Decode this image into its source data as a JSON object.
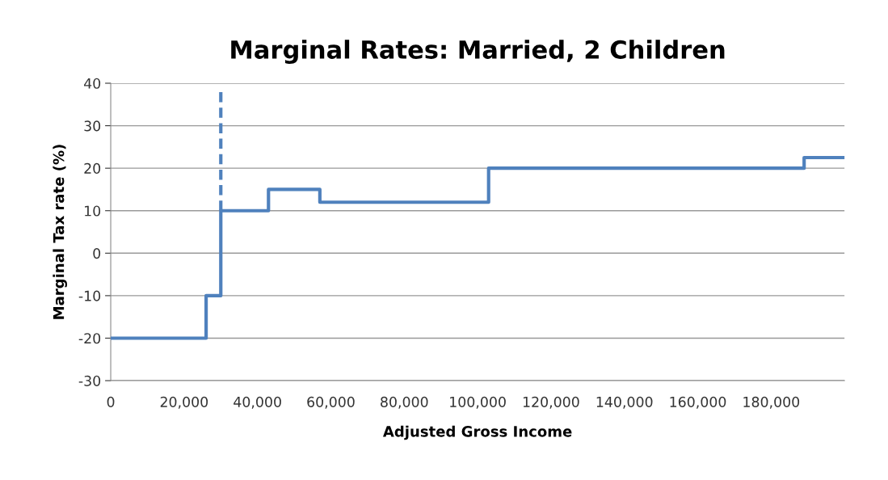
{
  "chart_data": {
    "type": "step",
    "title": "Marginal Rates: Married, 2 Children",
    "xlabel": "Adjusted Gross Income",
    "ylabel": "Marginal Tax rate (%)",
    "series": [
      {
        "color": "#4f81bd",
        "x": [
          0,
          26000,
          30000,
          43000,
          57000,
          103000,
          189000,
          200000
        ],
        "values": [
          -20,
          -10,
          10,
          15,
          12,
          20,
          22.5,
          22.5
        ]
      },
      {
        "type": "line",
        "line_style": "dashed",
        "color": "#4f81bd",
        "x": [
          30000,
          30000
        ],
        "values": [
          10,
          38
        ]
      }
    ],
    "xlim": [
      0,
      200000
    ],
    "xticks": [
      0,
      {
        "value": 20000,
        "label": "20,000"
      },
      {
        "value": 40000,
        "label": "40,000"
      },
      {
        "value": 60000,
        "label": "60,000"
      },
      {
        "value": 80000,
        "label": "80,000"
      },
      {
        "value": 100000,
        "label": "100,000"
      },
      {
        "value": 120000,
        "label": "120,000"
      },
      {
        "value": 140000,
        "label": "140,000"
      },
      {
        "value": 160000,
        "label": "160,000"
      },
      {
        "value": 180000,
        "label": "180,000"
      }
    ],
    "ylim": [
      -30,
      40
    ],
    "yticks": [
      -30,
      -20,
      -10,
      0,
      10,
      20,
      30,
      40
    ],
    "grid": "y"
  }
}
